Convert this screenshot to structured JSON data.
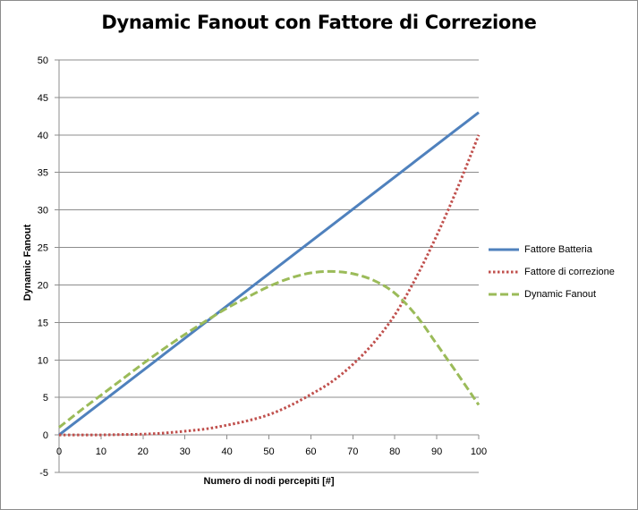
{
  "chart_data": {
    "type": "line",
    "title": "Dynamic Fanout con Fattore di Correzione",
    "xlabel": "Numero di nodi percepiti [#]",
    "ylabel": "Dynamic Fanout",
    "xlim": [
      0,
      100
    ],
    "ylim": [
      -5,
      50
    ],
    "x_ticks": [
      0,
      10,
      20,
      30,
      40,
      50,
      60,
      70,
      80,
      90,
      100
    ],
    "y_ticks": [
      -5,
      0,
      5,
      10,
      15,
      20,
      25,
      30,
      35,
      40,
      45,
      50
    ],
    "grid": "horizontal",
    "legend_position": "right",
    "x": [
      0,
      5,
      10,
      15,
      20,
      25,
      30,
      35,
      40,
      45,
      50,
      55,
      60,
      65,
      70,
      75,
      80,
      85,
      90,
      95,
      100
    ],
    "series": [
      {
        "name": "Fattore Batteria",
        "color": "#4f81bd",
        "style": "solid",
        "values": [
          0,
          2.15,
          4.3,
          6.45,
          8.6,
          10.75,
          12.9,
          15.05,
          17.2,
          19.35,
          21.5,
          23.65,
          25.8,
          27.95,
          30.1,
          32.25,
          34.4,
          36.55,
          38.7,
          40.85,
          43
        ]
      },
      {
        "name": "Fattore di correzione",
        "color": "#c0504d",
        "style": "dotted",
        "values": [
          0,
          0,
          0,
          0.05,
          0.1,
          0.25,
          0.5,
          0.8,
          1.3,
          1.9,
          2.7,
          3.9,
          5.4,
          7.1,
          9.4,
          12.3,
          16.0,
          20.9,
          26.6,
          33.0,
          40.0
        ]
      },
      {
        "name": "Dynamic Fanout",
        "color": "#9bbb59",
        "style": "dashed",
        "values": [
          1.0,
          3.2,
          5.3,
          7.4,
          9.5,
          11.5,
          13.4,
          15.2,
          16.9,
          18.4,
          19.8,
          20.9,
          21.6,
          21.8,
          21.5,
          20.6,
          18.9,
          16.0,
          12.1,
          8.1,
          4.0
        ]
      }
    ]
  }
}
